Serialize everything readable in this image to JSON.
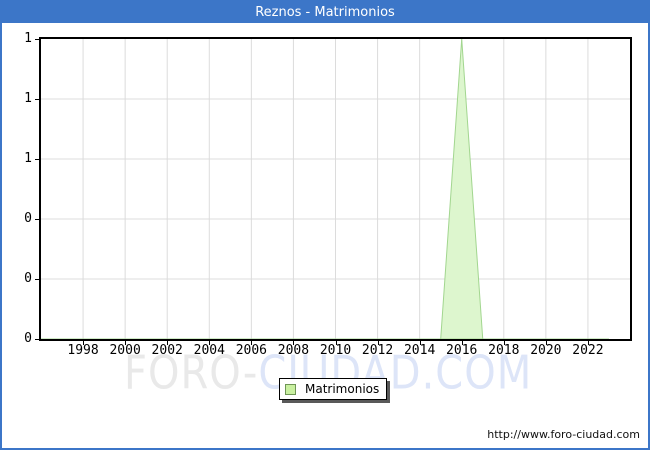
{
  "window": {
    "title": "Reznos - Matrimonios",
    "titlebar_color": "#3c76c8",
    "border_color": "#3c76c8"
  },
  "watermark": {
    "gray_text": "FORO-",
    "blue_text": "CIUDAD.COM",
    "gray_color": "#e9e9e9",
    "blue_color": "#dde5f8"
  },
  "legend": {
    "label": "Matrimonios",
    "swatch_fill": "#c9f0a0",
    "swatch_border": "#6f9556"
  },
  "footer": {
    "url": "http://www.foro-ciudad.com"
  },
  "chart_data": {
    "type": "area",
    "title": "Reznos - Matrimonios",
    "xlabel": "",
    "ylabel": "",
    "x_range": [
      1996,
      2024
    ],
    "y_range": [
      0,
      1
    ],
    "x_ticks": [
      1998,
      2000,
      2002,
      2004,
      2006,
      2008,
      2010,
      2012,
      2014,
      2016,
      2018,
      2020,
      2022
    ],
    "y_ticks": [
      {
        "value": 1.0,
        "label": "1"
      },
      {
        "value": 0.8,
        "label": "1"
      },
      {
        "value": 0.6,
        "label": "1"
      },
      {
        "value": 0.4,
        "label": "0"
      },
      {
        "value": 0.2,
        "label": "0"
      },
      {
        "value": 0.0,
        "label": "0"
      }
    ],
    "grid": true,
    "grid_color": "#dcdcdc",
    "legend_position": "bottom",
    "x": [
      1996,
      1997,
      1998,
      1999,
      2000,
      2001,
      2002,
      2003,
      2004,
      2005,
      2006,
      2007,
      2008,
      2009,
      2010,
      2011,
      2012,
      2013,
      2014,
      2015,
      2016,
      2017,
      2018,
      2019,
      2020,
      2021,
      2022,
      2023
    ],
    "series": [
      {
        "name": "Matrimonios",
        "fill": "#ddf6ce",
        "stroke": "#a2d68f",
        "values": [
          0,
          0,
          0,
          0,
          0,
          0,
          0,
          0,
          0,
          0,
          0,
          0,
          0,
          0,
          0,
          0,
          0,
          0,
          0,
          0,
          1,
          0,
          0,
          0,
          0,
          0,
          0,
          0
        ]
      }
    ]
  }
}
